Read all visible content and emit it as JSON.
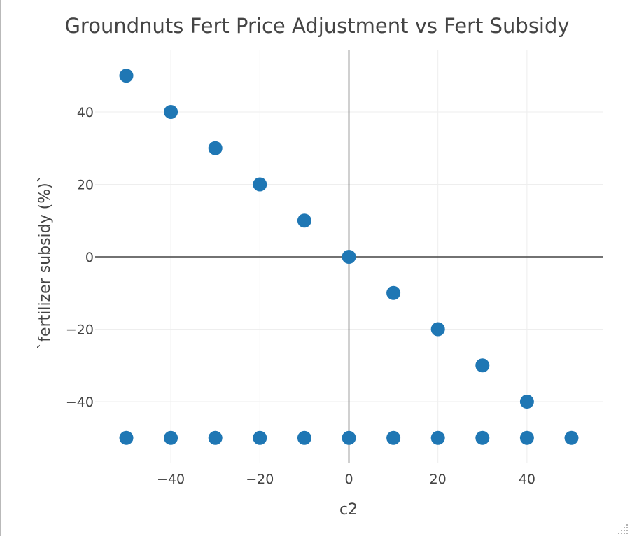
{
  "chart_data": {
    "type": "scatter",
    "title": "Groundnuts Fert Price Adjustment vs Fert Subsidy",
    "xlabel": "c2",
    "ylabel": "`fertilizer subsidy (%)`",
    "xlim": [
      -57,
      57
    ],
    "ylim": [
      -57,
      57
    ],
    "x_ticks": [
      -40,
      -20,
      0,
      20,
      40
    ],
    "y_ticks": [
      -40,
      -20,
      0,
      20,
      40
    ],
    "x_tick_labels": [
      "−40",
      "−20",
      "0",
      "20",
      "40"
    ],
    "y_tick_labels": [
      "−40",
      "−20",
      "0",
      "20",
      "40"
    ],
    "grid": true,
    "zero_lines": true,
    "marker_color": "#1f77b4",
    "points": [
      {
        "x": -50,
        "y": 50
      },
      {
        "x": -40,
        "y": 40
      },
      {
        "x": -30,
        "y": 30
      },
      {
        "x": -20,
        "y": 20
      },
      {
        "x": -10,
        "y": 10
      },
      {
        "x": 0,
        "y": 0
      },
      {
        "x": 10,
        "y": -10
      },
      {
        "x": 20,
        "y": -20
      },
      {
        "x": 30,
        "y": -30
      },
      {
        "x": 40,
        "y": -40
      },
      {
        "x": -50,
        "y": -50
      },
      {
        "x": -40,
        "y": -50
      },
      {
        "x": -30,
        "y": -50
      },
      {
        "x": -20,
        "y": -50
      },
      {
        "x": -10,
        "y": -50
      },
      {
        "x": 0,
        "y": -50
      },
      {
        "x": 10,
        "y": -50
      },
      {
        "x": 20,
        "y": -50
      },
      {
        "x": 30,
        "y": -50
      },
      {
        "x": 40,
        "y": -50
      },
      {
        "x": 50,
        "y": -50
      }
    ]
  },
  "colors": {
    "text": "#444444",
    "grid": "#eeeeee",
    "zero_line": "#444444",
    "frame_border": "#b9b9b9"
  },
  "icons": {
    "resize": "resize-grip-icon"
  }
}
